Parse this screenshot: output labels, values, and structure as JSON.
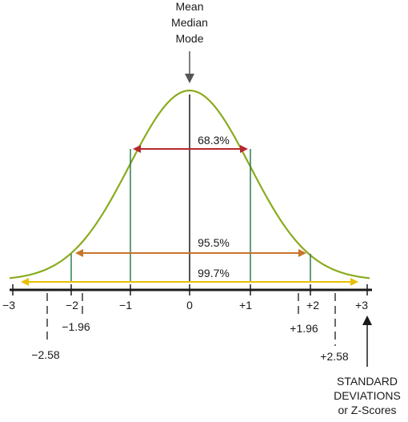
{
  "top_label": {
    "line1": "Mean",
    "line2": "Median",
    "line3": "Mode"
  },
  "intervals": [
    {
      "label": "68.3%",
      "from_sd": -1,
      "to_sd": 1,
      "color": "#b5282e"
    },
    {
      "label": "95.5%",
      "from_sd": -2,
      "to_sd": 2,
      "color": "#c8752a"
    },
    {
      "label": "99.7%",
      "from_sd": -3,
      "to_sd": 3,
      "color": "#e8c000"
    }
  ],
  "axis_ticks": [
    "−3",
    "−2",
    "−1",
    "0",
    "+1",
    "+2",
    "+3"
  ],
  "critical_values": {
    "neg_196": "−1.96",
    "pos_196": "+1.96",
    "neg_258": "−2.58",
    "pos_258": "+2.58"
  },
  "axis_caption": {
    "line1": "STANDARD",
    "line2": "DEVIATIONS",
    "line3": "or Z-Scores"
  },
  "colors": {
    "curve": "#8aab1e",
    "sd_lines": "#2e7d4f",
    "axis": "#1a1a1a"
  }
}
